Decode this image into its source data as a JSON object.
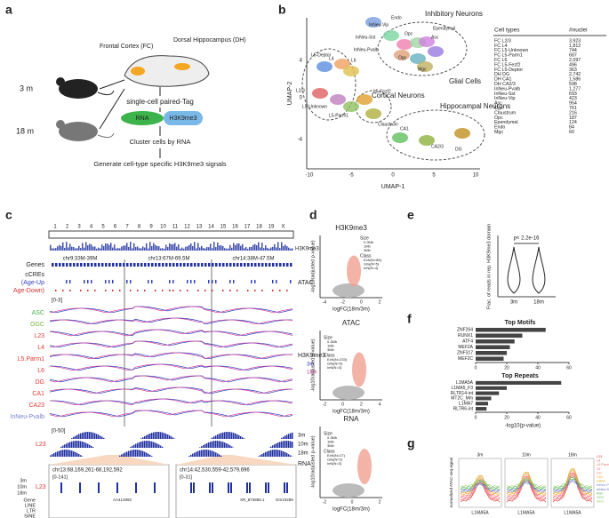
{
  "panel_labels": [
    "a",
    "b",
    "c",
    "d",
    "e",
    "f",
    "g"
  ],
  "a": {
    "age_young": "3 m",
    "age_old": "18 m",
    "fc": "Frontal Cortex (FC)",
    "dh": "Dorsal Hippocampus (DH)",
    "method": "single-cell paired-Tag",
    "rna": "RNA",
    "mark": "H3K9me3",
    "cluster": "Cluster cells by RNA",
    "generate": "Generate cell-type specific H3K9me3 signals"
  },
  "b": {
    "groups": [
      "Inhibitory Neurons",
      "Glial Cells",
      "Cortical Neurons",
      "Hippocampal Neurons"
    ],
    "clusters": [
      "Endo",
      "InNeu-Vip",
      "InNeu-Sst",
      "Opc",
      "Asc",
      "Ependymal",
      "InNeu-Pvalb",
      "Ogc",
      "Mgc",
      "L5-Deptor",
      "L4",
      "L6",
      "L2/3",
      "L5-Unknown",
      "L5-Fezf2",
      "L5-Parm1",
      "Claustrum",
      "CA1",
      "CA2/3",
      "DG"
    ],
    "xlabel": "UMAP-1",
    "ylabel": "UMAP-2",
    "xticks": [
      "-10",
      "-5",
      "0",
      "5",
      "10"
    ],
    "yticks": [
      "4",
      "0",
      "-4"
    ],
    "table": {
      "header": [
        "Cell types",
        "#nuclei"
      ],
      "rows": [
        [
          "FC L2/3",
          "3,923"
        ],
        [
          "FC L4",
          "1,812"
        ],
        [
          "FC L5-Unknown",
          "744"
        ],
        [
          "FC L5-Parm1",
          "687"
        ],
        [
          "FC L6",
          "2,097"
        ],
        [
          "FC L5-Fezf2",
          "496"
        ],
        [
          "FC L5-Deptor",
          "363"
        ],
        [
          "DH DG",
          "2,742"
        ],
        [
          "DH CA1",
          "1,586"
        ],
        [
          "DH CA2/3",
          "598"
        ],
        [
          "InNeu-Pvalb",
          "1,277"
        ],
        [
          "InNeu-Sst",
          "693"
        ],
        [
          "InNeu-Vip",
          "423"
        ],
        [
          "Asc",
          "954"
        ],
        [
          "Ogc",
          "761"
        ],
        [
          "Claustrum",
          "216"
        ],
        [
          "Opc",
          "187"
        ],
        [
          "Ependymal",
          "124"
        ],
        [
          "Endo",
          "84"
        ],
        [
          "Mgc",
          "60"
        ]
      ]
    }
  },
  "c": {
    "chromosomes": [
      "1",
      "2",
      "3",
      "4",
      "5",
      "6",
      "7",
      "8",
      "9",
      "10",
      "11",
      "12",
      "13",
      "14",
      "15",
      "16",
      "17",
      "18",
      "19",
      "X"
    ],
    "genome_track": "H3K9me3",
    "regions": [
      "chr9:33M-39M",
      "chr13:67M-69.5M",
      "chr14:38M-47.5M"
    ],
    "genes": "Genes",
    "ccres": "cCREs",
    "age_up": "(Age-Up",
    "age_down": "Age-Down)",
    "scale": "[0-3]",
    "tracks": [
      "ASC",
      "OGC",
      "L23",
      "L4",
      "L5.Parm1",
      "L6",
      "DG",
      "CA1",
      "CA23",
      "InNeu-Pvalb"
    ],
    "atac": "ATAC",
    "mark": "H3K9me3",
    "legend": [
      "3m",
      "18m"
    ],
    "rna_scale": "[0-50]",
    "rna_track": "L23",
    "rna_ages": [
      "3m",
      "10m",
      "18m"
    ],
    "rna": "RNA",
    "zoom": [
      {
        "region": "chr13:68,169,261-68,192,592",
        "scale": "[0-141]",
        "genes": [
          "AA414992"
        ]
      },
      {
        "region": "chr14:42,530,559-42,579,696",
        "scale": "[0-31]",
        "genes": [
          "XR_874858.1",
          "Gm10289"
        ]
      }
    ],
    "zoom_track": "L23",
    "zoom_ages": [
      "3m",
      "10m",
      "18m"
    ],
    "annotations": [
      "Gene",
      "LINE",
      "LTR",
      "SINE"
    ]
  },
  "d": {
    "ylabel": "-log10(adjusted p-value)",
    "xlabel": "logFC(18m/3m)",
    "size_title": "Size",
    "sizes": [
      "0.3Mb",
      "1Mb",
      "3Mb"
    ],
    "class_title": "Class",
    "plots": [
      {
        "title": "H3K9me3",
        "xticks": [
          "-4",
          "-2",
          "0",
          "2"
        ],
        "classes": [
          "ExN(N=85)",
          "Glia(N=5)",
          "InN(N=4)"
        ]
      },
      {
        "title": "ATAC",
        "xticks": [
          "-2",
          "0",
          "2",
          "4"
        ],
        "classes": [
          "ExN(N=233)",
          "Glia(N=5)",
          "InN(N=3)"
        ]
      },
      {
        "title": "RNA",
        "xticks": [
          "-2",
          "0",
          "2"
        ],
        "classes": [
          "ExN(N=27)",
          "Glia(N=2)",
          "InN(N=3)"
        ]
      }
    ]
  },
  "e": {
    "pvalue": "p< 2.2e-16",
    "ylabel": "Frac. of reads in rep. H3K9me3 domain",
    "groups": [
      "3m",
      "18m"
    ]
  },
  "chart_data": [
    {
      "type": "bar",
      "orientation": "horizontal",
      "title": "Top Motifs",
      "categories": [
        "ZNF264",
        "RUNX1",
        "ATF4",
        "MEF2A",
        "ZNF317",
        "MEF2C"
      ],
      "values": [
        45,
        30,
        25,
        22,
        20,
        18
      ],
      "color": "#444444",
      "xlim": [
        0,
        60
      ],
      "xticks": [
        0,
        20,
        40,
        60
      ]
    },
    {
      "type": "bar",
      "orientation": "horizontal",
      "title": "Top Repeats",
      "categories": [
        "L1MA5A",
        "L1MA5_F3",
        "RLTR14-int",
        "MT2C_Mm",
        "L1MA7",
        "RLTR6-int"
      ],
      "values": [
        55,
        20,
        15,
        10,
        8,
        7
      ],
      "color": "#444444",
      "xlim": [
        0,
        60
      ],
      "xticks": [
        0,
        20,
        40,
        60
      ],
      "xlabel": "-log10(p-value)"
    }
  ],
  "g": {
    "ages": [
      "3m",
      "10m",
      "18m"
    ],
    "xlabel": "L1MA5A",
    "ylabel": "normalized ATAC-seq signal",
    "legend": [
      "L23",
      "L4",
      "L5.Parm1",
      "L6",
      "DG",
      "CA1",
      "CA23",
      "InNeu-Pvalb",
      "InNeu-Sst",
      "ASC",
      "OGC",
      "MGC"
    ]
  }
}
